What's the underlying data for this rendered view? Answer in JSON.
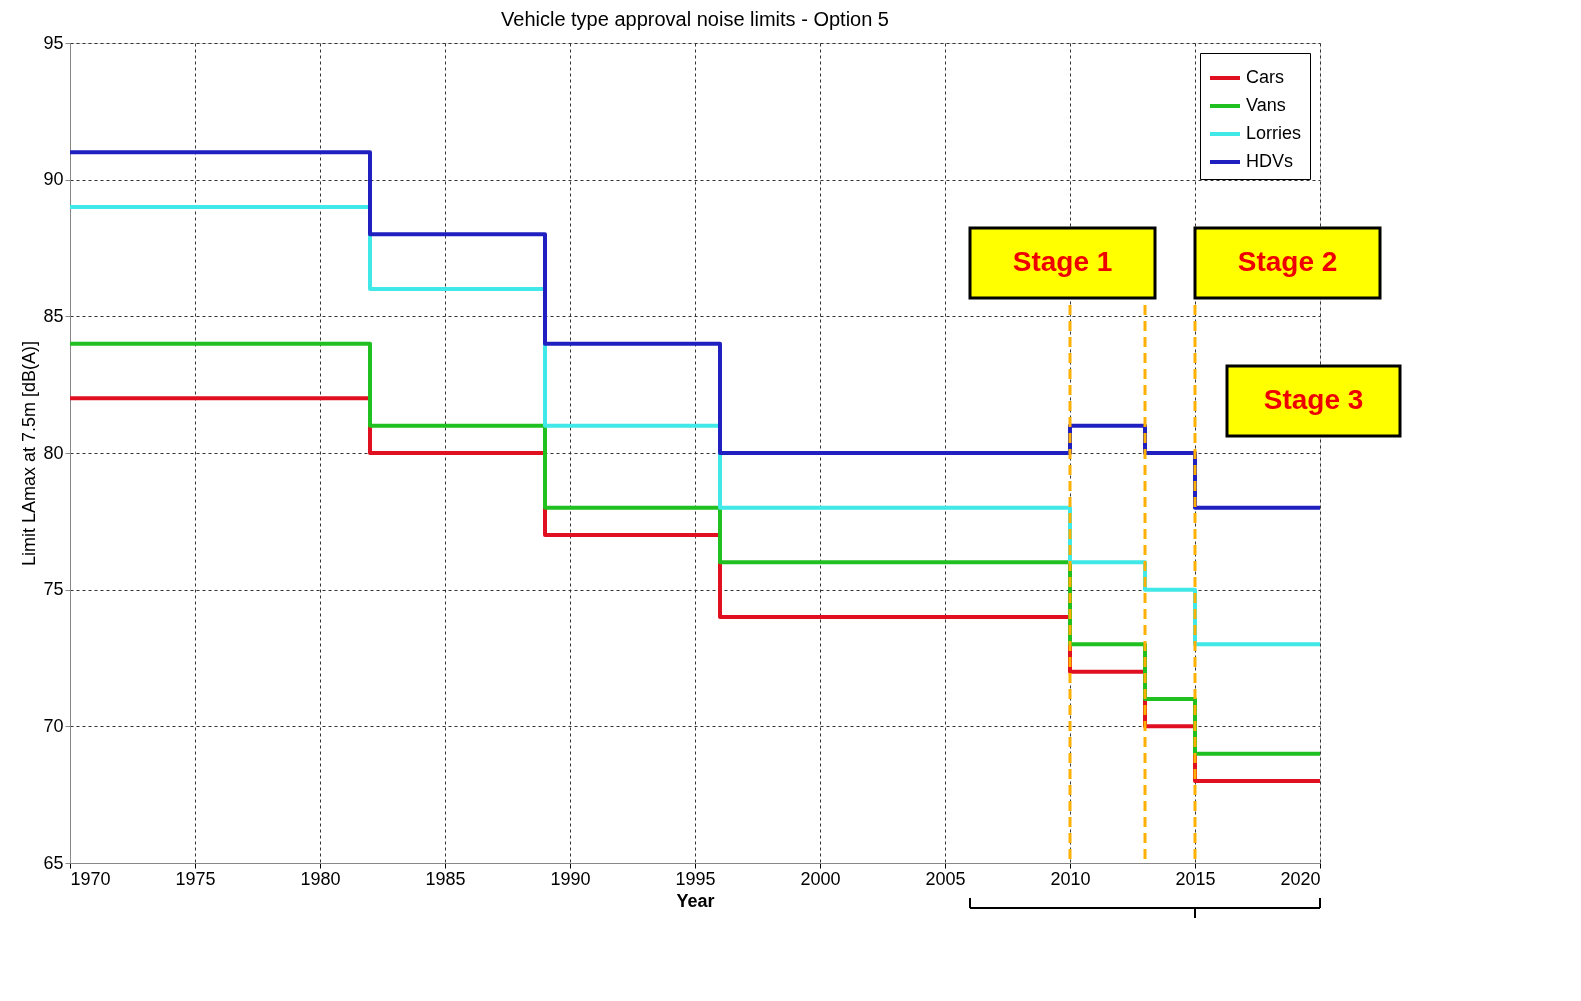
{
  "chart_data": {
    "type": "step",
    "title": "Vehicle type approval noise limits - Option 5",
    "xlabel": "Year",
    "ylabel": "Limit LAmax at 7.5m [dB(A)]",
    "x": [
      1970,
      1982,
      1989,
      1996,
      2010,
      2013,
      2015,
      2020
    ],
    "series": [
      {
        "name": "Cars",
        "color": "#e01020",
        "values": [
          82,
          80,
          77,
          74,
          72,
          70,
          68,
          68
        ]
      },
      {
        "name": "Vans",
        "color": "#20c020",
        "values": [
          84,
          81,
          78,
          76,
          73,
          71,
          69,
          69
        ]
      },
      {
        "name": "Lorries",
        "color": "#40e8e8",
        "values": [
          89,
          86,
          81,
          78,
          76,
          75,
          73,
          73
        ]
      },
      {
        "name": "HDVs",
        "color": "#2020c0",
        "values": [
          91,
          88,
          84,
          80,
          81,
          80,
          78,
          78
        ]
      }
    ],
    "xlim": [
      1970,
      2020
    ],
    "xticks": [
      1970,
      1975,
      1980,
      1985,
      1990,
      1995,
      2000,
      2005,
      2010,
      2015,
      2020
    ],
    "ylim": [
      65,
      95
    ],
    "yticks": [
      65,
      70,
      75,
      80,
      85,
      90,
      95
    ],
    "ref_lines": [
      {
        "axis": "x",
        "value": 2010,
        "color": "#ffb000",
        "line_style": "dashed"
      },
      {
        "axis": "x",
        "value": 2013,
        "color": "#ffb000",
        "line_style": "dashed"
      },
      {
        "axis": "x",
        "value": 2015,
        "color": "#ffb000",
        "line_style": "dashed"
      }
    ],
    "annotations": [
      "Stage 1",
      "Stage 2",
      "Stage 3"
    ],
    "grid": true,
    "legend": "top right"
  }
}
